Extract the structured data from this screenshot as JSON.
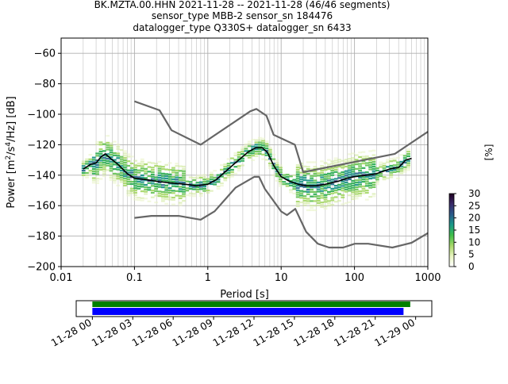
{
  "title_lines": [
    "BK.MZTA.00.HHN   2021-11-28 -- 2021-11-28  (46/46 segments)",
    "sensor_type MBB-2 sensor_sn 184476",
    "datalogger_type Q330S+ datalogger_sn 6433"
  ],
  "chart_data": [
    {
      "type": "heatmap",
      "xlabel": "Period [s]",
      "ylabel_parts": [
        "Power [m",
        "2",
        "/s",
        "4",
        "/Hz] [dB]"
      ],
      "xscale": "log",
      "xlim": [
        0.01,
        1000
      ],
      "ylim": [
        -200,
        -50
      ],
      "x_ticks": [
        0.01,
        0.1,
        1,
        10,
        100,
        1000
      ],
      "x_tick_labels": [
        "0.01",
        "0.1",
        "1",
        "10",
        "100",
        "1000"
      ],
      "y_ticks": [
        -200,
        -180,
        -160,
        -140,
        -120,
        -100,
        -80,
        -60
      ],
      "y_tick_labels": [
        "−200",
        "−180",
        "−160",
        "−140",
        "−120",
        "−100",
        "−80",
        "−60"
      ],
      "grid": true,
      "colors": {
        "mean": "#000000",
        "noise_model": "#666666"
      },
      "series": [
        {
          "role": "mean",
          "x": [
            0.02,
            0.025,
            0.03,
            0.035,
            0.04,
            0.05,
            0.06,
            0.08,
            0.1,
            0.15,
            0.2,
            0.3,
            0.5,
            0.7,
            1.0,
            1.3,
            1.7,
            2.5,
            3.5,
            4.5,
            5.5,
            6.5,
            8,
            10,
            13,
            17,
            22,
            30,
            40,
            60,
            80,
            100,
            150,
            200,
            300,
            400,
            500,
            600
          ],
          "y": [
            -136,
            -133,
            -132,
            -128,
            -126,
            -130,
            -133,
            -139,
            -142,
            -143,
            -144,
            -145,
            -146,
            -147,
            -146,
            -143,
            -138,
            -131,
            -125,
            -122,
            -122,
            -125,
            -134,
            -141,
            -144,
            -146,
            -147,
            -147,
            -146,
            -144,
            -142,
            -141,
            -140,
            -139,
            -136,
            -135,
            -130,
            -129
          ]
        },
        {
          "role": "noise_model_high",
          "x": [
            0.1,
            0.22,
            0.32,
            0.8,
            3.8,
            4.6,
            6.3,
            7.9,
            15.4,
            20,
            354.8,
            1000
          ],
          "y": [
            -91.5,
            -97.4,
            -110.5,
            -120.0,
            -98.0,
            -96.5,
            -101.0,
            -113.5,
            -120.0,
            -138.0,
            -126.0,
            -111.5
          ]
        },
        {
          "role": "noise_model_low",
          "x": [
            0.1,
            0.17,
            0.4,
            0.8,
            1.24,
            2.4,
            4.3,
            5.0,
            6.0,
            10.0,
            12.0,
            15.6,
            21.9,
            31.6,
            45.0,
            70.0,
            101.0,
            154.0,
            328.0,
            600.0,
            1000.0
          ],
          "y": [
            -168.0,
            -166.7,
            -166.7,
            -169.2,
            -163.7,
            -148.1,
            -141.1,
            -141.1,
            -149.0,
            -163.8,
            -166.2,
            -162.1,
            -177.2,
            -185.0,
            -187.5,
            -187.5,
            -185.0,
            -185.0,
            -187.5,
            -184.4,
            -178.0
          ]
        }
      ],
      "colorbar": {
        "label": "[%]",
        "range": [
          0,
          30
        ],
        "ticks": [
          0,
          5,
          10,
          15,
          20,
          25,
          30
        ],
        "tick_labels": [
          "0",
          "5",
          "10",
          "15",
          "20",
          "25",
          "30"
        ],
        "colormap_stops": [
          "#ffffff",
          "#e8f4c0",
          "#a8d86a",
          "#3fbf4a",
          "#1a9a8a",
          "#2a5a8a",
          "#3a2a6a",
          "#200020"
        ]
      }
    },
    {
      "type": "timeline",
      "x_tick_labels": [
        "11-28 00",
        "11-28 03",
        "11-28 06",
        "11-28 09",
        "11-28 12",
        "11-28 15",
        "11-28 18",
        "11-28 21",
        "11-29 00"
      ],
      "x_tick_hours": [
        0,
        3,
        6,
        9,
        12,
        15,
        18,
        21,
        24
      ],
      "xlim_hours": [
        -1.2,
        25.2
      ],
      "bars": [
        {
          "color": "#008000",
          "start_hour": 0,
          "end_hour": 23.6
        },
        {
          "color": "#0000ff",
          "start_hour": 0,
          "end_hour": 23.1
        }
      ]
    }
  ]
}
